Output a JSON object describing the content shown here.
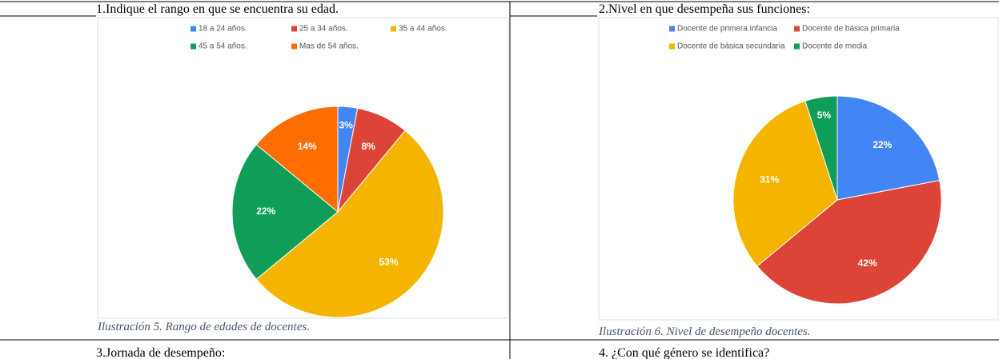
{
  "cells": {
    "q1": "1.Indique el rango en que se encuentra su edad.",
    "q2": "2.Nivel en que desempeña sus funciones:",
    "q3": "3.Jornada de desempeño:",
    "q4": "4. ¿Con qué género se identifica?",
    "caption1": "Ilustración 5. Rango de edades de docentes.",
    "caption2": "Ilustración 6. Nivel de desempeño docentes."
  },
  "chart_data": [
    {
      "type": "pie",
      "categories": [
        "18 a 24 años.",
        "25 a 34 años.",
        "35 a 44 años.",
        "45 a 54 años.",
        "Mas de 54 años."
      ],
      "values": [
        3,
        8,
        53,
        22,
        14
      ],
      "value_labels": [
        "3%",
        "8%",
        "53%",
        "22%",
        "14%"
      ],
      "colors": [
        "#4285f4",
        "#db4437",
        "#f4b400",
        "#0f9d58",
        "#ff6d01"
      ],
      "legend": "top"
    },
    {
      "type": "pie",
      "categories": [
        "Docente de primera infancia",
        "Docente de básica primaria",
        "Docente de básica secundaria",
        "Docente de media"
      ],
      "values": [
        22,
        42,
        31,
        5
      ],
      "value_labels": [
        "22%",
        "42%",
        "31%",
        "5%"
      ],
      "colors": [
        "#4285f4",
        "#db4437",
        "#f4b400",
        "#0f9d58"
      ],
      "legend": "top"
    }
  ]
}
